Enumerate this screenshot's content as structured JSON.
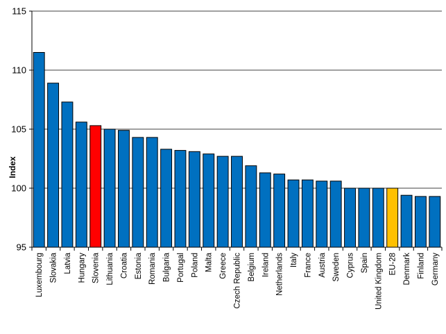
{
  "chart_data": {
    "type": "bar",
    "title": "",
    "xlabel": "",
    "ylabel": "Index",
    "ylim": [
      95,
      115
    ],
    "yticks": [
      95,
      100,
      105,
      110,
      115
    ],
    "grid": true,
    "categories": [
      "Luxembourg",
      "Slovakia",
      "Latvia",
      "Hungary",
      "Slovenia",
      "Lithuania",
      "Croatia",
      "Estonia",
      "Romania",
      "Bulgaria",
      "Portugal",
      "Poland",
      "Malta",
      "Greece",
      "Czech Republic",
      "Belgium",
      "Ireland",
      "Netherlands",
      "Italy",
      "France",
      "Austria",
      "Sweden",
      "Cyprus",
      "Spain",
      "United Kingdom",
      "EU-28",
      "Denmark",
      "Finland",
      "Germany"
    ],
    "values": [
      111.5,
      108.9,
      107.3,
      105.6,
      105.3,
      105.0,
      104.9,
      104.3,
      104.3,
      103.3,
      103.2,
      103.1,
      102.9,
      102.7,
      102.7,
      101.9,
      101.3,
      101.2,
      100.7,
      100.7,
      100.6,
      100.6,
      100.0,
      100.0,
      100.0,
      100.0,
      99.4,
      99.3,
      99.3
    ],
    "colors": {
      "default": "#0070C0",
      "highlight": "#FF0000",
      "aggregate": "#FFC000",
      "border": "#000000",
      "grid": "#000000"
    },
    "highlight_category": "Slovenia",
    "aggregate_category": "EU-28"
  }
}
